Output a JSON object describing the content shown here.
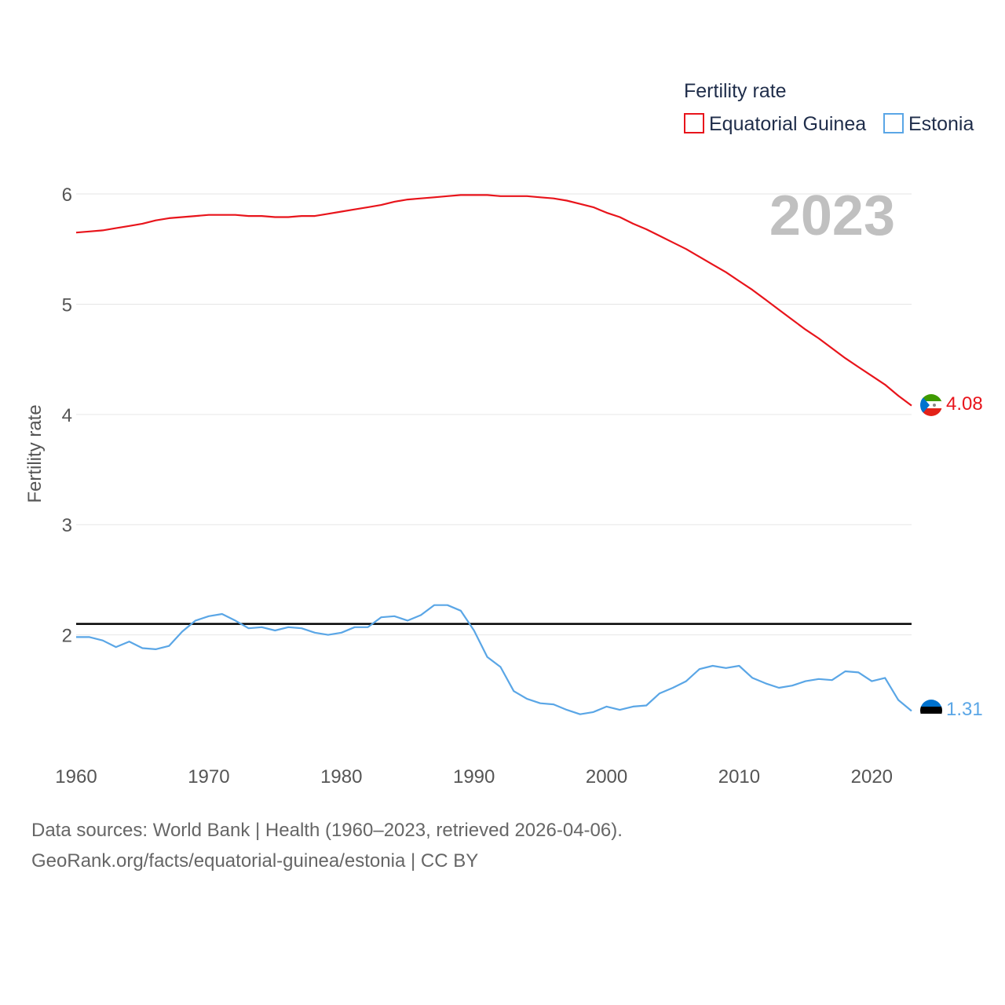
{
  "chart_data": {
    "type": "line",
    "title": "",
    "xlabel": "",
    "ylabel": "Fertility rate",
    "xlim": [
      1960,
      2023
    ],
    "ylim": [
      1.1,
      6.1
    ],
    "yticks": [
      2,
      3,
      4,
      5,
      6
    ],
    "xticks": [
      1960,
      1970,
      1980,
      1990,
      2000,
      2010,
      2020
    ],
    "grid": true,
    "legend": {
      "title": "Fertility rate",
      "placement": "top-right"
    },
    "year_label": "2023",
    "reference_line": {
      "y": 2.1,
      "color": "#000000"
    },
    "x": [
      1960,
      1961,
      1962,
      1963,
      1964,
      1965,
      1966,
      1967,
      1968,
      1969,
      1970,
      1971,
      1972,
      1973,
      1974,
      1975,
      1976,
      1977,
      1978,
      1979,
      1980,
      1981,
      1982,
      1983,
      1984,
      1985,
      1986,
      1987,
      1988,
      1989,
      1990,
      1991,
      1992,
      1993,
      1994,
      1995,
      1996,
      1997,
      1998,
      1999,
      2000,
      2001,
      2002,
      2003,
      2004,
      2005,
      2006,
      2007,
      2008,
      2009,
      2010,
      2011,
      2012,
      2013,
      2014,
      2015,
      2016,
      2017,
      2018,
      2019,
      2020,
      2021,
      2022,
      2023
    ],
    "series": [
      {
        "name": "Equatorial Guinea",
        "color": "#e8141b",
        "end_label": "4.08",
        "values": [
          5.65,
          5.66,
          5.67,
          5.69,
          5.71,
          5.73,
          5.76,
          5.78,
          5.79,
          5.8,
          5.81,
          5.81,
          5.81,
          5.8,
          5.8,
          5.79,
          5.79,
          5.8,
          5.8,
          5.82,
          5.84,
          5.86,
          5.88,
          5.9,
          5.93,
          5.95,
          5.96,
          5.97,
          5.98,
          5.99,
          5.99,
          5.99,
          5.98,
          5.98,
          5.98,
          5.97,
          5.96,
          5.94,
          5.91,
          5.88,
          5.83,
          5.79,
          5.73,
          5.68,
          5.62,
          5.56,
          5.5,
          5.43,
          5.36,
          5.29,
          5.21,
          5.13,
          5.04,
          4.95,
          4.86,
          4.77,
          4.69,
          4.6,
          4.51,
          4.43,
          4.35,
          4.27,
          4.17,
          4.08
        ]
      },
      {
        "name": "Estonia",
        "color": "#5aa6e6",
        "end_label": "1.31",
        "values": [
          1.98,
          1.98,
          1.95,
          1.89,
          1.94,
          1.88,
          1.87,
          1.9,
          2.03,
          2.13,
          2.17,
          2.19,
          2.13,
          2.06,
          2.07,
          2.04,
          2.07,
          2.06,
          2.02,
          2.0,
          2.02,
          2.07,
          2.07,
          2.16,
          2.17,
          2.13,
          2.18,
          2.27,
          2.27,
          2.22,
          2.04,
          1.8,
          1.71,
          1.49,
          1.42,
          1.38,
          1.37,
          1.32,
          1.28,
          1.3,
          1.35,
          1.32,
          1.35,
          1.36,
          1.47,
          1.52,
          1.58,
          1.69,
          1.72,
          1.7,
          1.72,
          1.61,
          1.56,
          1.52,
          1.54,
          1.58,
          1.6,
          1.59,
          1.67,
          1.66,
          1.58,
          1.61,
          1.41,
          1.31
        ]
      }
    ]
  },
  "footer": {
    "line1": "Data sources: World Bank | Health (1960–2023, retrieved 2026-04-06).",
    "line2": "GeoRank.org/facts/equatorial-guinea/estonia | CC BY"
  }
}
